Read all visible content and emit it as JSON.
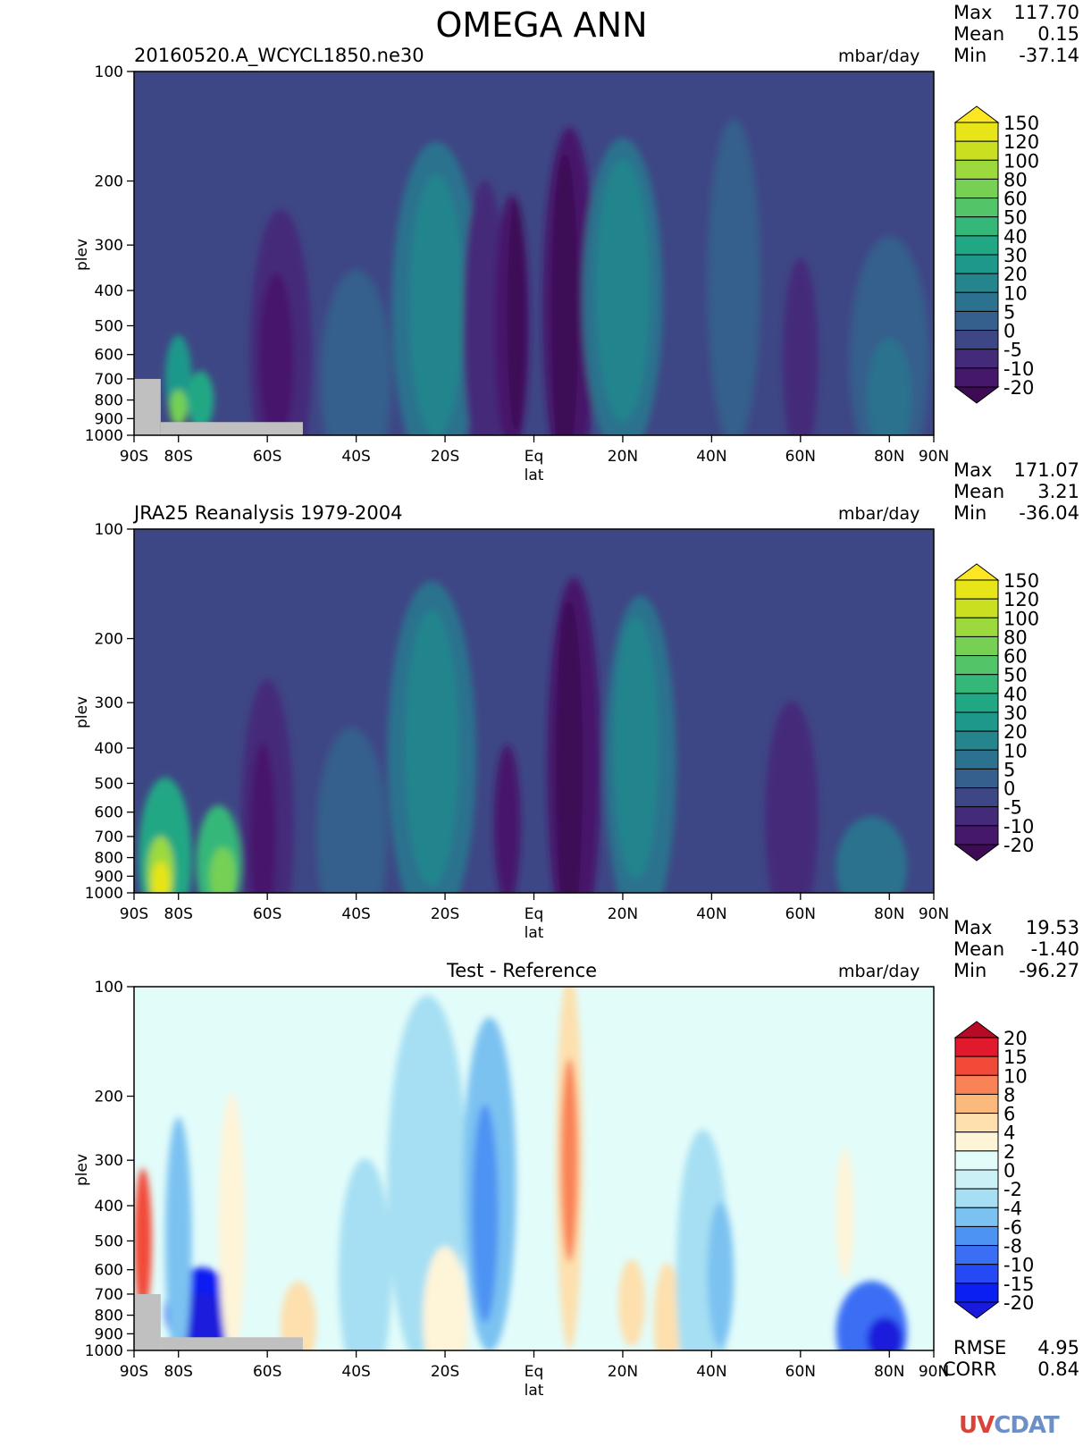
{
  "figure": {
    "title": "OMEGA ANN",
    "units": "mbar/day",
    "xlabel": "lat",
    "ylabel": "plev",
    "x_ticks": [
      "90S",
      "80S",
      "60S",
      "40S",
      "20S",
      "Eq",
      "20N",
      "40N",
      "60N",
      "80N",
      "90N"
    ],
    "y_ticks": [
      "100",
      "200",
      "300",
      "400",
      "500",
      "600",
      "700",
      "800",
      "900",
      "1000"
    ],
    "stat_labels": {
      "max": "Max",
      "mean": "Mean",
      "min": "Min"
    }
  },
  "panels": [
    {
      "name": "test",
      "subtitle": "20160520.A_WCYCL1850.ne30",
      "stats": {
        "max": "117.70",
        "mean": "0.15",
        "min": "-37.14"
      },
      "colorbar_labels": [
        "150",
        "120",
        "100",
        "80",
        "60",
        "50",
        "40",
        "30",
        "20",
        "10",
        "5",
        "0",
        "-5",
        "-10",
        "-20"
      ]
    },
    {
      "name": "reference",
      "subtitle": "JRA25 Reanalysis 1979-2004",
      "stats": {
        "max": "171.07",
        "mean": "3.21",
        "min": "-36.04"
      },
      "colorbar_labels": [
        "150",
        "120",
        "100",
        "80",
        "60",
        "50",
        "40",
        "30",
        "20",
        "10",
        "5",
        "0",
        "-5",
        "-10",
        "-20"
      ]
    },
    {
      "name": "difference",
      "subtitle": "Test - Reference",
      "stats": {
        "max": "19.53",
        "mean": "-1.40",
        "min": "-96.27"
      },
      "colorbar_labels": [
        "20",
        "15",
        "10",
        "8",
        "6",
        "4",
        "2",
        "0",
        "-2",
        "-4",
        "-6",
        "-8",
        "-10",
        "-15",
        "-20"
      ],
      "metrics": {
        "rmse_label": "RMSE",
        "rmse": "4.95",
        "corr_label": "CORR",
        "corr": "0.84"
      }
    }
  ],
  "logo": {
    "part1": "UV",
    "part2": "CDAT"
  },
  "chart_data": {
    "type": "heatmap",
    "title": "OMEGA ANN",
    "xlabel": "lat",
    "ylabel": "plev",
    "units": "mbar/day",
    "x_axis": {
      "range": [
        -90,
        90
      ],
      "ticks": [
        -90,
        -80,
        -60,
        -40,
        -20,
        0,
        20,
        40,
        60,
        80,
        90
      ]
    },
    "y_axis": {
      "range": [
        1000,
        100
      ],
      "scale": "log",
      "ticks": [
        100,
        200,
        300,
        400,
        500,
        600,
        700,
        800,
        900,
        1000
      ]
    },
    "panels": [
      {
        "subtitle": "20160520.A_WCYCL1850.ne30",
        "levels": [
          -20,
          -10,
          -5,
          0,
          5,
          10,
          20,
          30,
          40,
          50,
          60,
          80,
          100,
          120,
          150
        ],
        "colors": [
          "#3d0a54",
          "#46186c",
          "#442b7a",
          "#3e4785",
          "#355f8c",
          "#2c728e",
          "#24858d",
          "#1e988a",
          "#22a785",
          "#35b779",
          "#52c569",
          "#75d054",
          "#9bd93c",
          "#c8e020",
          "#e7e419",
          "#fde725"
        ],
        "stats": {
          "max": 117.7,
          "mean": 0.15,
          "min": -37.14
        },
        "missing_below_surface": [
          {
            "lat": [
              -90,
              -84
            ],
            "plev_from": 700
          },
          {
            "lat": [
              -84,
              -52
            ],
            "plev_from": 920
          }
        ]
      },
      {
        "subtitle": "JRA25 Reanalysis 1979-2004",
        "levels": [
          -20,
          -10,
          -5,
          0,
          5,
          10,
          20,
          30,
          40,
          50,
          60,
          80,
          100,
          120,
          150
        ],
        "colors": [
          "#3d0a54",
          "#46186c",
          "#442b7a",
          "#3e4785",
          "#355f8c",
          "#2c728e",
          "#24858d",
          "#1e988a",
          "#22a785",
          "#35b779",
          "#52c569",
          "#75d054",
          "#9bd93c",
          "#c8e020",
          "#e7e419",
          "#fde725"
        ],
        "stats": {
          "max": 171.07,
          "mean": 3.21,
          "min": -36.04
        }
      },
      {
        "subtitle": "Test - Reference",
        "levels": [
          -20,
          -15,
          -10,
          -8,
          -6,
          -4,
          -2,
          0,
          2,
          4,
          6,
          8,
          10,
          15,
          20
        ],
        "colors": [
          "#1a1adc",
          "#0b1ff2",
          "#2549f5",
          "#3a6ef5",
          "#4d93f3",
          "#7bc2f1",
          "#a6dff3",
          "#cbf0f6",
          "#e2fcfa",
          "#fef4d8",
          "#fde0ad",
          "#fcb97c",
          "#f98356",
          "#f24a38",
          "#e0192d",
          "#b80a24"
        ],
        "stats": {
          "max": 19.53,
          "mean": -1.4,
          "min": -96.27
        },
        "rmse": 4.95,
        "corr": 0.84,
        "missing_below_surface": [
          {
            "lat": [
              -90,
              -84
            ],
            "plev_from": 700
          },
          {
            "lat": [
              -84,
              -52
            ],
            "plev_from": 920
          }
        ]
      }
    ]
  }
}
